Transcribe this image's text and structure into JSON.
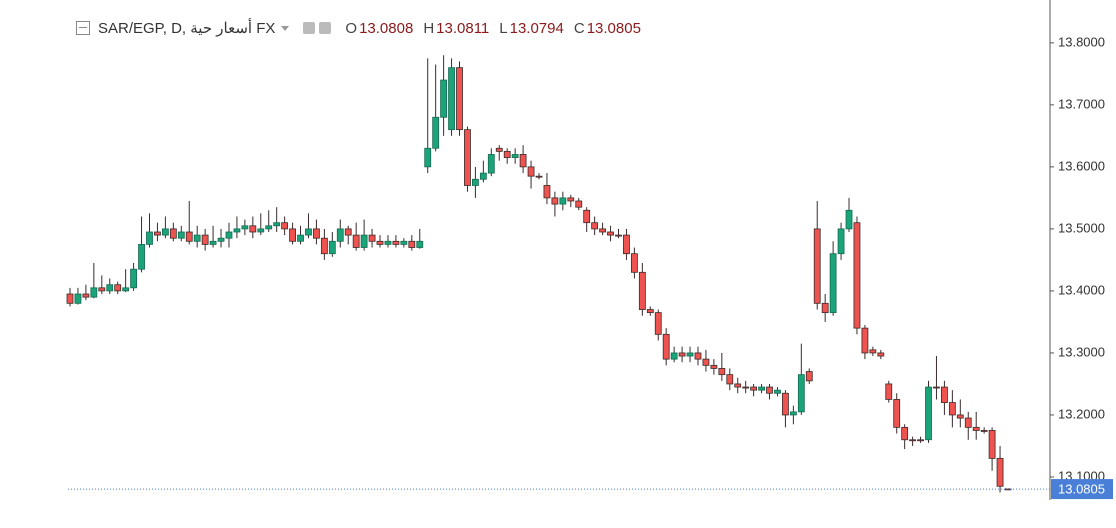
{
  "chart_data": {
    "type": "candlestick",
    "title": "SAR/EGP, D, أسعار حية FX",
    "header_ohlc": [
      {
        "label": "O",
        "value": 13.0808
      },
      {
        "label": "H",
        "value": 13.0811
      },
      {
        "label": "L",
        "value": 13.0794
      },
      {
        "label": "C",
        "value": 13.0805
      }
    ],
    "up_color": "#1ba37a",
    "down_color": "#ef5350",
    "border_color": "#3a2a2a",
    "last_price_color": "#4a7fd8",
    "ylim": [
      13.079,
      13.861
    ],
    "yticks": [
      {
        "value": 13.1,
        "label": "13.1000"
      },
      {
        "value": 13.2,
        "label": "13.2000"
      },
      {
        "value": 13.3,
        "label": "13.3000"
      },
      {
        "value": 13.4,
        "label": "13.4000"
      },
      {
        "value": 13.5,
        "label": "13.5000"
      },
      {
        "value": 13.6,
        "label": "13.6000"
      },
      {
        "value": 13.7,
        "label": "13.7000"
      },
      {
        "value": 13.8,
        "label": "13.8000"
      }
    ],
    "last_price": 13.0805,
    "ohlc": [
      [
        13.395,
        13.405,
        13.375,
        13.38
      ],
      [
        13.38,
        13.405,
        13.378,
        13.395
      ],
      [
        13.395,
        13.41,
        13.385,
        13.39
      ],
      [
        13.39,
        13.445,
        13.388,
        13.405
      ],
      [
        13.405,
        13.425,
        13.395,
        13.4
      ],
      [
        13.4,
        13.42,
        13.395,
        13.41
      ],
      [
        13.41,
        13.415,
        13.395,
        13.4
      ],
      [
        13.4,
        13.435,
        13.398,
        13.405
      ],
      [
        13.405,
        13.445,
        13.4,
        13.435
      ],
      [
        13.435,
        13.52,
        13.43,
        13.475
      ],
      [
        13.475,
        13.525,
        13.47,
        13.495
      ],
      [
        13.495,
        13.51,
        13.48,
        13.49
      ],
      [
        13.49,
        13.52,
        13.485,
        13.5
      ],
      [
        13.5,
        13.51,
        13.48,
        13.485
      ],
      [
        13.485,
        13.505,
        13.48,
        13.495
      ],
      [
        13.495,
        13.545,
        13.475,
        13.48
      ],
      [
        13.48,
        13.505,
        13.47,
        13.49
      ],
      [
        13.49,
        13.5,
        13.465,
        13.475
      ],
      [
        13.475,
        13.505,
        13.47,
        13.48
      ],
      [
        13.48,
        13.5,
        13.47,
        13.485
      ],
      [
        13.485,
        13.51,
        13.47,
        13.495
      ],
      [
        13.495,
        13.52,
        13.485,
        13.5
      ],
      [
        13.5,
        13.515,
        13.49,
        13.505
      ],
      [
        13.505,
        13.52,
        13.485,
        13.495
      ],
      [
        13.495,
        13.525,
        13.49,
        13.5
      ],
      [
        13.5,
        13.53,
        13.495,
        13.505
      ],
      [
        13.505,
        13.535,
        13.495,
        13.51
      ],
      [
        13.51,
        13.52,
        13.49,
        13.5
      ],
      [
        13.5,
        13.51,
        13.475,
        13.48
      ],
      [
        13.48,
        13.505,
        13.475,
        13.49
      ],
      [
        13.49,
        13.525,
        13.485,
        13.5
      ],
      [
        13.5,
        13.515,
        13.475,
        13.485
      ],
      [
        13.485,
        13.5,
        13.45,
        13.46
      ],
      [
        13.46,
        13.495,
        13.455,
        13.48
      ],
      [
        13.48,
        13.515,
        13.47,
        13.5
      ],
      [
        13.5,
        13.505,
        13.475,
        13.49
      ],
      [
        13.49,
        13.51,
        13.465,
        13.47
      ],
      [
        13.47,
        13.515,
        13.465,
        13.49
      ],
      [
        13.49,
        13.5,
        13.47,
        13.48
      ],
      [
        13.48,
        13.49,
        13.47,
        13.475
      ],
      [
        13.475,
        13.49,
        13.47,
        13.48
      ],
      [
        13.48,
        13.49,
        13.47,
        13.475
      ],
      [
        13.475,
        13.485,
        13.47,
        13.48
      ],
      [
        13.48,
        13.49,
        13.465,
        13.47
      ],
      [
        13.47,
        13.5,
        13.468,
        13.48
      ],
      [
        13.6,
        13.775,
        13.59,
        13.63
      ],
      [
        13.63,
        13.765,
        13.625,
        13.68
      ],
      [
        13.68,
        13.78,
        13.65,
        13.74
      ],
      [
        13.66,
        13.775,
        13.65,
        13.76
      ],
      [
        13.76,
        13.77,
        13.65,
        13.66
      ],
      [
        13.66,
        13.665,
        13.56,
        13.57
      ],
      [
        13.57,
        13.6,
        13.55,
        13.58
      ],
      [
        13.58,
        13.61,
        13.575,
        13.59
      ],
      [
        13.59,
        13.63,
        13.585,
        13.62
      ],
      [
        13.63,
        13.635,
        13.61,
        13.625
      ],
      [
        13.625,
        13.63,
        13.605,
        13.615
      ],
      [
        13.615,
        13.63,
        13.605,
        13.62
      ],
      [
        13.62,
        13.635,
        13.59,
        13.6
      ],
      [
        13.6,
        13.61,
        13.565,
        13.585
      ],
      [
        13.585,
        13.59,
        13.58,
        13.585
      ],
      [
        13.57,
        13.59,
        13.54,
        13.55
      ],
      [
        13.55,
        13.56,
        13.52,
        13.54
      ],
      [
        13.54,
        13.56,
        13.53,
        13.55
      ],
      [
        13.55,
        13.555,
        13.535,
        13.545
      ],
      [
        13.545,
        13.55,
        13.53,
        13.535
      ],
      [
        13.53,
        13.535,
        13.495,
        13.51
      ],
      [
        13.51,
        13.52,
        13.49,
        13.5
      ],
      [
        13.5,
        13.51,
        13.49,
        13.495
      ],
      [
        13.495,
        13.505,
        13.48,
        13.49
      ],
      [
        13.49,
        13.5,
        13.485,
        13.49
      ],
      [
        13.49,
        13.5,
        13.45,
        13.46
      ],
      [
        13.46,
        13.47,
        13.42,
        13.43
      ],
      [
        13.43,
        13.445,
        13.36,
        13.37
      ],
      [
        13.37,
        13.375,
        13.36,
        13.365
      ],
      [
        13.365,
        13.37,
        13.32,
        13.33
      ],
      [
        13.33,
        13.34,
        13.28,
        13.29
      ],
      [
        13.29,
        13.31,
        13.285,
        13.3
      ],
      [
        13.3,
        13.31,
        13.285,
        13.295
      ],
      [
        13.295,
        13.31,
        13.285,
        13.3
      ],
      [
        13.3,
        13.31,
        13.28,
        13.29
      ],
      [
        13.29,
        13.305,
        13.27,
        13.28
      ],
      [
        13.28,
        13.29,
        13.265,
        13.275
      ],
      [
        13.275,
        13.3,
        13.255,
        13.265
      ],
      [
        13.265,
        13.275,
        13.24,
        13.25
      ],
      [
        13.25,
        13.26,
        13.235,
        13.245
      ],
      [
        13.245,
        13.255,
        13.235,
        13.245
      ],
      [
        13.245,
        13.25,
        13.23,
        13.24
      ],
      [
        13.24,
        13.25,
        13.235,
        13.245
      ],
      [
        13.245,
        13.25,
        13.225,
        13.235
      ],
      [
        13.235,
        13.245,
        13.23,
        13.24
      ],
      [
        13.235,
        13.24,
        13.18,
        13.2
      ],
      [
        13.2,
        13.215,
        13.185,
        13.205
      ],
      [
        13.205,
        13.315,
        13.2,
        13.265
      ],
      [
        13.27,
        13.275,
        13.25,
        13.255
      ],
      [
        13.5,
        13.545,
        13.37,
        13.38
      ],
      [
        13.38,
        13.395,
        13.35,
        13.365
      ],
      [
        13.365,
        13.48,
        13.36,
        13.46
      ],
      [
        13.46,
        13.51,
        13.45,
        13.5
      ],
      [
        13.5,
        13.55,
        13.495,
        13.53
      ],
      [
        13.51,
        13.52,
        13.33,
        13.34
      ],
      [
        13.34,
        13.345,
        13.29,
        13.3
      ],
      [
        13.305,
        13.31,
        13.295,
        13.3
      ],
      [
        13.3,
        13.305,
        13.29,
        13.295
      ],
      [
        13.25,
        13.255,
        13.22,
        13.225
      ],
      [
        13.225,
        13.235,
        13.17,
        13.18
      ],
      [
        13.18,
        13.185,
        13.145,
        13.16
      ],
      [
        13.16,
        13.165,
        13.15,
        13.16
      ],
      [
        13.16,
        13.165,
        13.155,
        13.16
      ],
      [
        13.16,
        13.255,
        13.155,
        13.245
      ],
      [
        13.245,
        13.295,
        13.225,
        13.245
      ],
      [
        13.245,
        13.255,
        13.2,
        13.22
      ],
      [
        13.22,
        13.24,
        13.18,
        13.2
      ],
      [
        13.2,
        13.225,
        13.18,
        13.195
      ],
      [
        13.195,
        13.205,
        13.16,
        13.18
      ],
      [
        13.18,
        13.205,
        13.16,
        13.175
      ],
      [
        13.175,
        13.18,
        13.17,
        13.175
      ],
      [
        13.175,
        13.18,
        13.11,
        13.13
      ],
      [
        13.13,
        13.15,
        13.075,
        13.085
      ],
      [
        13.0808,
        13.0811,
        13.0794,
        13.0805
      ]
    ]
  }
}
